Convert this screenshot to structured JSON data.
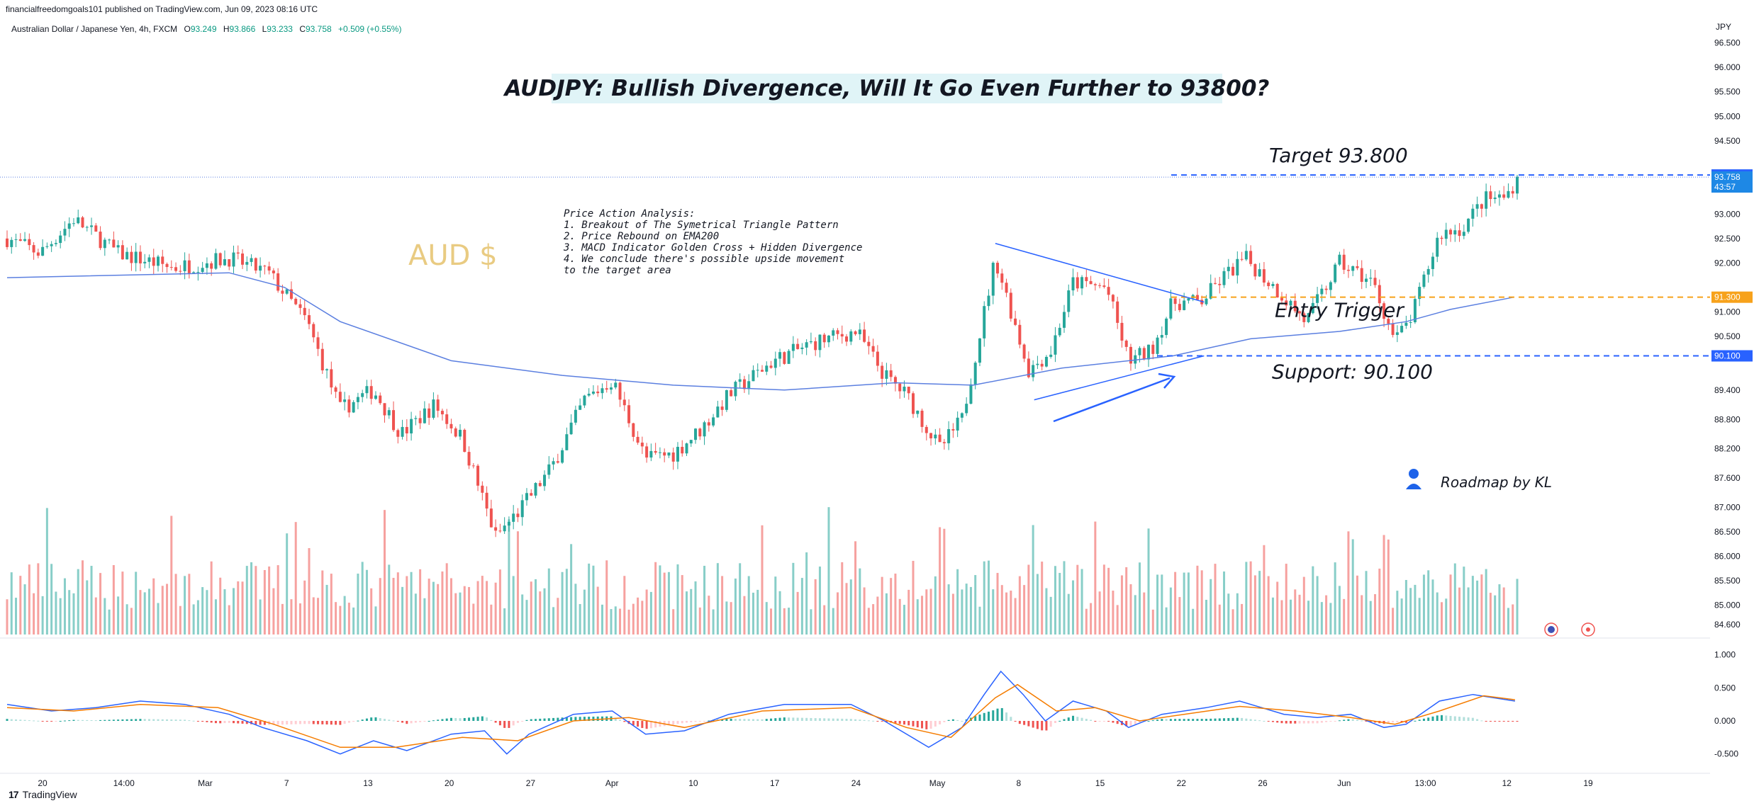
{
  "header": {
    "published": "financialfreedomgoals101 published on TradingView.com, Jun 09, 2023 08:16 UTC",
    "symbol": "Australian Dollar / Japanese Yen, 4h, FXCM",
    "ohlc": {
      "open_label": "O",
      "open": "93.249",
      "high_label": "H",
      "high": "93.866",
      "low_label": "L",
      "low": "93.233",
      "close_label": "C",
      "close": "93.758",
      "change": "+0.509 (+0.55%)"
    }
  },
  "currency": "JPY",
  "footer": {
    "brand": "TradingView"
  },
  "colors": {
    "up": "#26a69a",
    "down": "#ef5350",
    "ema": "#5b7fe0",
    "blue_level": "#2962ff",
    "orange_level": "#f7a21b",
    "macd": "#2962ff",
    "signal": "#f57c00"
  },
  "chart_data": [
    {
      "type": "candlestick",
      "title": "AUDJPY: Bullish Divergence, Will It Go Even Further to 93800?",
      "watermark": "AUD $",
      "ylim": [
        84.4,
        96.8
      ],
      "yticks": [
        "96.500",
        "96.000",
        "95.500",
        "95.000",
        "94.500",
        "93.000",
        "92.500",
        "92.000",
        "91.000",
        "90.500",
        "89.400",
        "88.800",
        "88.200",
        "87.600",
        "87.000",
        "86.500",
        "86.000",
        "85.500",
        "85.000",
        "84.600"
      ],
      "xticks": [
        "20",
        "14:00",
        "Mar",
        "7",
        "13",
        "20",
        "27",
        "Apr",
        "10",
        "17",
        "24",
        "May",
        "8",
        "15",
        "22",
        "26",
        "Jun",
        "13:00",
        "12",
        "19"
      ],
      "price_path": [
        [
          0,
          92.5
        ],
        [
          30,
          92.2
        ],
        [
          60,
          92.9
        ],
        [
          100,
          92.2
        ],
        [
          150,
          91.9
        ],
        [
          200,
          92.1
        ],
        [
          235,
          91.8
        ],
        [
          270,
          90.8
        ],
        [
          300,
          89.0
        ],
        [
          330,
          89.4
        ],
        [
          355,
          88.5
        ],
        [
          385,
          89.1
        ],
        [
          410,
          88.4
        ],
        [
          440,
          86.4
        ],
        [
          460,
          86.9
        ],
        [
          490,
          87.8
        ],
        [
          520,
          89.2
        ],
        [
          545,
          89.6
        ],
        [
          575,
          88.0
        ],
        [
          600,
          88.1
        ],
        [
          625,
          88.6
        ],
        [
          650,
          89.3
        ],
        [
          690,
          90.0
        ],
        [
          730,
          90.4
        ],
        [
          765,
          90.6
        ],
        [
          790,
          89.7
        ],
        [
          810,
          89.3
        ],
        [
          840,
          88.2
        ],
        [
          860,
          88.8
        ],
        [
          890,
          92.1
        ],
        [
          920,
          89.8
        ],
        [
          940,
          90.2
        ],
        [
          960,
          91.6
        ],
        [
          990,
          91.5
        ],
        [
          1010,
          90.0
        ],
        [
          1030,
          90.2
        ],
        [
          1050,
          91.2
        ],
        [
          1075,
          91.2
        ],
        [
          1095,
          91.7
        ],
        [
          1115,
          92.1
        ],
        [
          1150,
          91.3
        ],
        [
          1170,
          90.8
        ],
        [
          1200,
          92.0
        ],
        [
          1230,
          91.6
        ],
        [
          1250,
          90.4
        ],
        [
          1265,
          90.9
        ],
        [
          1290,
          92.6
        ],
        [
          1310,
          92.7
        ],
        [
          1330,
          93.3
        ],
        [
          1350,
          93.35
        ],
        [
          1360,
          93.758
        ]
      ],
      "ema200_path": [
        [
          0,
          91.7
        ],
        [
          200,
          91.8
        ],
        [
          250,
          91.5
        ],
        [
          300,
          90.8
        ],
        [
          400,
          90.0
        ],
        [
          500,
          89.7
        ],
        [
          600,
          89.5
        ],
        [
          700,
          89.4
        ],
        [
          800,
          89.55
        ],
        [
          870,
          89.5
        ],
        [
          950,
          89.85
        ],
        [
          1050,
          90.1
        ],
        [
          1120,
          90.45
        ],
        [
          1200,
          90.6
        ],
        [
          1260,
          90.8
        ],
        [
          1300,
          91.05
        ],
        [
          1357,
          91.3
        ]
      ],
      "levels": [
        {
          "label": "Target  93.800",
          "value": 93.8,
          "tag": "93.800"
        },
        {
          "label": "Entry Trigger",
          "value": 91.3,
          "tag": "91.300"
        },
        {
          "label": "Support: 90.100",
          "value": 90.1,
          "tag": "90.100"
        }
      ],
      "last_price": {
        "value": "93.758",
        "countdown": "43:57"
      },
      "annotations": [
        "Price Action Analysis:",
        "1. Breakout of The Symetrical Triangle Pattern",
        "2. Price Rebound on EMA200",
        "3. MACD Indicator Golden Cross + Hidden Divergence",
        "4. We conclude there's possible upside movement",
        "to the target area"
      ],
      "roadmap": "Roadmap by KL"
    },
    {
      "type": "macd",
      "ylim": [
        -0.75,
        1.2
      ],
      "yticks": [
        "1.000",
        "0.500",
        "0.000",
        "-0.500"
      ],
      "macd_path": [
        [
          0,
          0.25
        ],
        [
          40,
          0.15
        ],
        [
          80,
          0.2
        ],
        [
          120,
          0.3
        ],
        [
          160,
          0.25
        ],
        [
          200,
          0.1
        ],
        [
          230,
          -0.1
        ],
        [
          270,
          -0.3
        ],
        [
          300,
          -0.5
        ],
        [
          330,
          -0.3
        ],
        [
          360,
          -0.45
        ],
        [
          400,
          -0.2
        ],
        [
          430,
          -0.15
        ],
        [
          450,
          -0.5
        ],
        [
          470,
          -0.2
        ],
        [
          510,
          0.1
        ],
        [
          545,
          0.15
        ],
        [
          575,
          -0.2
        ],
        [
          610,
          -0.15
        ],
        [
          650,
          0.1
        ],
        [
          700,
          0.25
        ],
        [
          760,
          0.25
        ],
        [
          790,
          0.0
        ],
        [
          830,
          -0.4
        ],
        [
          860,
          -0.1
        ],
        [
          880,
          0.4
        ],
        [
          895,
          0.75
        ],
        [
          915,
          0.4
        ],
        [
          935,
          0.0
        ],
        [
          960,
          0.3
        ],
        [
          990,
          0.15
        ],
        [
          1010,
          -0.1
        ],
        [
          1040,
          0.1
        ],
        [
          1080,
          0.2
        ],
        [
          1110,
          0.3
        ],
        [
          1150,
          0.1
        ],
        [
          1180,
          0.05
        ],
        [
          1210,
          0.1
        ],
        [
          1240,
          -0.1
        ],
        [
          1260,
          -0.05
        ],
        [
          1290,
          0.3
        ],
        [
          1320,
          0.4
        ],
        [
          1358,
          0.3
        ]
      ],
      "signal_path": [
        [
          0,
          0.2
        ],
        [
          60,
          0.15
        ],
        [
          120,
          0.25
        ],
        [
          190,
          0.2
        ],
        [
          240,
          -0.05
        ],
        [
          300,
          -0.4
        ],
        [
          350,
          -0.4
        ],
        [
          410,
          -0.25
        ],
        [
          460,
          -0.3
        ],
        [
          510,
          0.0
        ],
        [
          560,
          0.05
        ],
        [
          610,
          -0.1
        ],
        [
          680,
          0.15
        ],
        [
          760,
          0.2
        ],
        [
          810,
          -0.1
        ],
        [
          850,
          -0.25
        ],
        [
          890,
          0.35
        ],
        [
          910,
          0.55
        ],
        [
          945,
          0.15
        ],
        [
          980,
          0.2
        ],
        [
          1020,
          0.0
        ],
        [
          1060,
          0.1
        ],
        [
          1110,
          0.22
        ],
        [
          1160,
          0.15
        ],
        [
          1210,
          0.05
        ],
        [
          1250,
          -0.05
        ],
        [
          1290,
          0.15
        ],
        [
          1330,
          0.38
        ],
        [
          1358,
          0.32
        ]
      ]
    }
  ]
}
